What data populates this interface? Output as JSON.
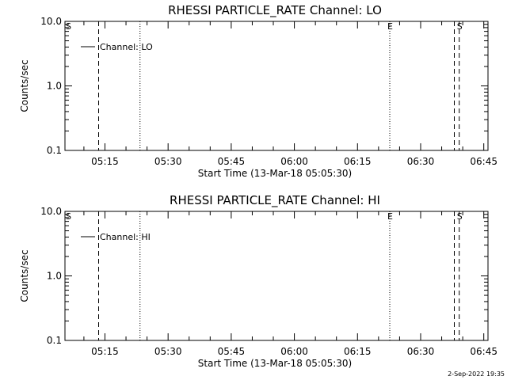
{
  "footer_timestamp": "2-Sep-2022 19:35",
  "chart_data": [
    {
      "type": "line",
      "title": "RHESSI PARTICLE_RATE Channel: LO",
      "xlabel": "Start Time (13-Mar-18 05:05:30)",
      "ylabel": "Counts/sec",
      "x_scale": "time",
      "x_range": [
        "05:05:30",
        "06:46:00"
      ],
      "x_tick_labels": [
        "05:15",
        "05:30",
        "05:45",
        "06:00",
        "06:15",
        "06:30",
        "06:45"
      ],
      "y_scale": "log",
      "y_range": [
        0.1,
        10.0
      ],
      "y_tick_labels": [
        "10.0",
        "1.0",
        "0.1"
      ],
      "y_ticks": [
        10.0,
        1.0,
        0.1
      ],
      "grid": false,
      "legend": {
        "placement": "top-left",
        "entries": [
          "Channel: LO"
        ]
      },
      "series": [
        {
          "name": "Channel: LO",
          "x": [],
          "y": []
        }
      ],
      "vertical_markers": [
        {
          "time": "05:13:30",
          "style": "dashed"
        },
        {
          "time": "05:23:20",
          "style": "dotted"
        },
        {
          "time": "06:22:40",
          "style": "dotted",
          "label": "E"
        },
        {
          "time": "06:38:00",
          "style": "dashed"
        },
        {
          "time": "06:39:10",
          "style": "dashed",
          "label": "S"
        }
      ],
      "edge_label_left": "S"
    },
    {
      "type": "line",
      "title": "RHESSI PARTICLE_RATE Channel: HI",
      "xlabel": "Start Time (13-Mar-18 05:05:30)",
      "ylabel": "Counts/sec",
      "x_scale": "time",
      "x_range": [
        "05:05:30",
        "06:46:00"
      ],
      "x_tick_labels": [
        "05:15",
        "05:30",
        "05:45",
        "06:00",
        "06:15",
        "06:30",
        "06:45"
      ],
      "y_scale": "log",
      "y_range": [
        0.1,
        10.0
      ],
      "y_tick_labels": [
        "10.0",
        "1.0",
        "0.1"
      ],
      "y_ticks": [
        10.0,
        1.0,
        0.1
      ],
      "grid": false,
      "legend": {
        "placement": "top-left",
        "entries": [
          "Channel: HI"
        ]
      },
      "series": [
        {
          "name": "Channel: HI",
          "x": [],
          "y": []
        }
      ],
      "vertical_markers": [
        {
          "time": "05:13:30",
          "style": "dashed"
        },
        {
          "time": "05:23:20",
          "style": "dotted"
        },
        {
          "time": "06:22:40",
          "style": "dotted",
          "label": "E"
        },
        {
          "time": "06:38:00",
          "style": "dashed"
        },
        {
          "time": "06:39:10",
          "style": "dashed",
          "label": "S"
        }
      ],
      "edge_label_left": "S"
    }
  ]
}
